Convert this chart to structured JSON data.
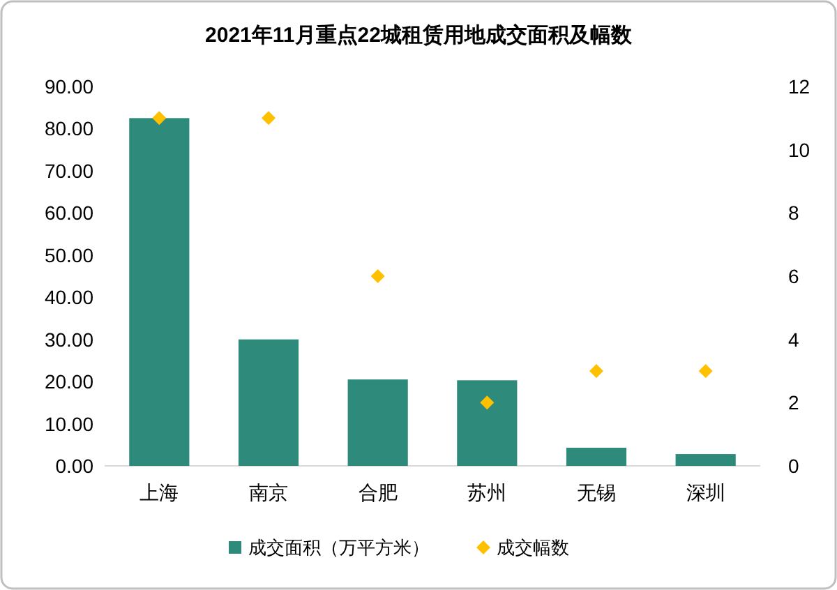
{
  "chart_data": {
    "type": "bar",
    "title": "2021年11月重点22城租赁用地成交面积及幅数",
    "categories": [
      "上海",
      "南京",
      "合肥",
      "苏州",
      "无锡",
      "深圳"
    ],
    "series": [
      {
        "name": "成交面积（万平方米）",
        "color": "#2e8b7c",
        "values": [
          82.5,
          30.0,
          20.5,
          20.3,
          4.3,
          2.8
        ]
      },
      {
        "name": "成交幅数",
        "type": "scatter",
        "axis": "y2",
        "color": "#ffc000",
        "values": [
          11,
          11,
          6,
          2,
          3,
          3
        ]
      }
    ],
    "ylim": [
      0,
      90
    ],
    "yticks": [
      {
        "value": 0,
        "label": "0.00"
      },
      {
        "value": 10,
        "label": "10.00"
      },
      {
        "value": 20,
        "label": "20.00"
      },
      {
        "value": 30,
        "label": "30.00"
      },
      {
        "value": 40,
        "label": "40.00"
      },
      {
        "value": 50,
        "label": "50.00"
      },
      {
        "value": 60,
        "label": "60.00"
      },
      {
        "value": 70,
        "label": "70.00"
      },
      {
        "value": 80,
        "label": "80.00"
      },
      {
        "value": 90,
        "label": "90.00"
      }
    ],
    "y2lim": [
      0,
      12
    ],
    "y2ticks": [
      0,
      2,
      4,
      6,
      8,
      10,
      12
    ],
    "marker": "diamond",
    "legend": "bottom"
  }
}
